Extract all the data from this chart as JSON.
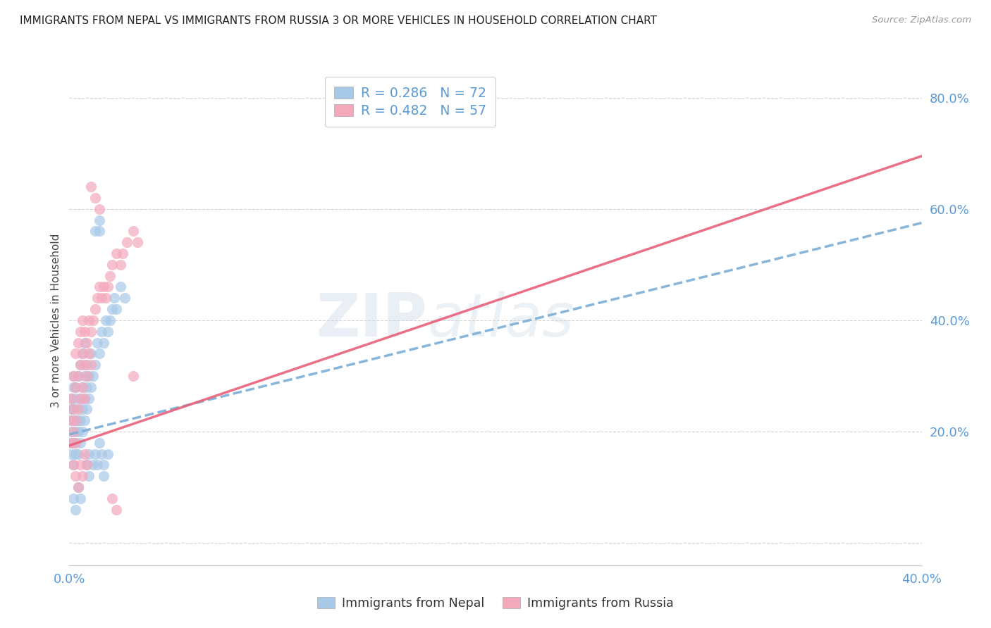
{
  "title": "IMMIGRANTS FROM NEPAL VS IMMIGRANTS FROM RUSSIA 3 OR MORE VEHICLES IN HOUSEHOLD CORRELATION CHART",
  "source": "Source: ZipAtlas.com",
  "ylabel": "3 or more Vehicles in Household",
  "y_ticks": [
    0.0,
    0.2,
    0.4,
    0.6,
    0.8
  ],
  "y_tick_labels": [
    "",
    "20.0%",
    "40.0%",
    "60.0%",
    "80.0%"
  ],
  "x_lim": [
    0.0,
    0.4
  ],
  "y_lim": [
    -0.04,
    0.84
  ],
  "nepal_R": 0.286,
  "nepal_N": 72,
  "russia_R": 0.482,
  "russia_N": 57,
  "nepal_color": "#a8c8e8",
  "russia_color": "#f4a8bc",
  "nepal_line_color": "#7aaed6",
  "russia_line_color": "#e8607a",
  "nepal_line_intercept": 0.195,
  "nepal_line_slope": 0.95,
  "russia_line_intercept": 0.175,
  "russia_line_slope": 1.3,
  "nepal_scatter": [
    [
      0.001,
      0.24
    ],
    [
      0.001,
      0.22
    ],
    [
      0.001,
      0.2
    ],
    [
      0.001,
      0.18
    ],
    [
      0.001,
      0.16
    ],
    [
      0.001,
      0.26
    ],
    [
      0.002,
      0.28
    ],
    [
      0.002,
      0.22
    ],
    [
      0.002,
      0.18
    ],
    [
      0.002,
      0.14
    ],
    [
      0.002,
      0.3
    ],
    [
      0.002,
      0.24
    ],
    [
      0.003,
      0.26
    ],
    [
      0.003,
      0.22
    ],
    [
      0.003,
      0.2
    ],
    [
      0.003,
      0.18
    ],
    [
      0.003,
      0.16
    ],
    [
      0.003,
      0.28
    ],
    [
      0.004,
      0.3
    ],
    [
      0.004,
      0.24
    ],
    [
      0.004,
      0.2
    ],
    [
      0.004,
      0.16
    ],
    [
      0.004,
      0.22
    ],
    [
      0.005,
      0.32
    ],
    [
      0.005,
      0.26
    ],
    [
      0.005,
      0.22
    ],
    [
      0.005,
      0.18
    ],
    [
      0.006,
      0.34
    ],
    [
      0.006,
      0.28
    ],
    [
      0.006,
      0.24
    ],
    [
      0.006,
      0.2
    ],
    [
      0.007,
      0.36
    ],
    [
      0.007,
      0.3
    ],
    [
      0.007,
      0.26
    ],
    [
      0.007,
      0.22
    ],
    [
      0.008,
      0.32
    ],
    [
      0.008,
      0.28
    ],
    [
      0.008,
      0.24
    ],
    [
      0.009,
      0.3
    ],
    [
      0.009,
      0.26
    ],
    [
      0.01,
      0.34
    ],
    [
      0.01,
      0.28
    ],
    [
      0.011,
      0.3
    ],
    [
      0.012,
      0.32
    ],
    [
      0.013,
      0.36
    ],
    [
      0.014,
      0.34
    ],
    [
      0.015,
      0.38
    ],
    [
      0.016,
      0.36
    ],
    [
      0.017,
      0.4
    ],
    [
      0.018,
      0.38
    ],
    [
      0.019,
      0.4
    ],
    [
      0.02,
      0.42
    ],
    [
      0.021,
      0.44
    ],
    [
      0.022,
      0.42
    ],
    [
      0.024,
      0.46
    ],
    [
      0.026,
      0.44
    ],
    [
      0.008,
      0.14
    ],
    [
      0.009,
      0.12
    ],
    [
      0.009,
      0.16
    ],
    [
      0.011,
      0.14
    ],
    [
      0.012,
      0.16
    ],
    [
      0.012,
      0.56
    ],
    [
      0.014,
      0.56
    ],
    [
      0.014,
      0.58
    ],
    [
      0.002,
      0.08
    ],
    [
      0.003,
      0.06
    ],
    [
      0.004,
      0.1
    ],
    [
      0.005,
      0.08
    ],
    [
      0.013,
      0.14
    ],
    [
      0.014,
      0.18
    ],
    [
      0.015,
      0.16
    ],
    [
      0.016,
      0.14
    ],
    [
      0.016,
      0.12
    ],
    [
      0.018,
      0.16
    ]
  ],
  "russia_scatter": [
    [
      0.001,
      0.26
    ],
    [
      0.001,
      0.22
    ],
    [
      0.001,
      0.18
    ],
    [
      0.002,
      0.3
    ],
    [
      0.002,
      0.24
    ],
    [
      0.002,
      0.2
    ],
    [
      0.003,
      0.34
    ],
    [
      0.003,
      0.28
    ],
    [
      0.003,
      0.22
    ],
    [
      0.003,
      0.18
    ],
    [
      0.004,
      0.36
    ],
    [
      0.004,
      0.3
    ],
    [
      0.004,
      0.24
    ],
    [
      0.005,
      0.38
    ],
    [
      0.005,
      0.32
    ],
    [
      0.005,
      0.26
    ],
    [
      0.006,
      0.4
    ],
    [
      0.006,
      0.34
    ],
    [
      0.006,
      0.28
    ],
    [
      0.007,
      0.38
    ],
    [
      0.007,
      0.32
    ],
    [
      0.007,
      0.26
    ],
    [
      0.008,
      0.36
    ],
    [
      0.008,
      0.3
    ],
    [
      0.009,
      0.4
    ],
    [
      0.009,
      0.34
    ],
    [
      0.01,
      0.38
    ],
    [
      0.01,
      0.32
    ],
    [
      0.011,
      0.4
    ],
    [
      0.012,
      0.42
    ],
    [
      0.013,
      0.44
    ],
    [
      0.014,
      0.46
    ],
    [
      0.015,
      0.44
    ],
    [
      0.016,
      0.46
    ],
    [
      0.017,
      0.44
    ],
    [
      0.018,
      0.46
    ],
    [
      0.019,
      0.48
    ],
    [
      0.02,
      0.5
    ],
    [
      0.022,
      0.52
    ],
    [
      0.024,
      0.5
    ],
    [
      0.025,
      0.52
    ],
    [
      0.027,
      0.54
    ],
    [
      0.03,
      0.56
    ],
    [
      0.032,
      0.54
    ],
    [
      0.002,
      0.14
    ],
    [
      0.003,
      0.12
    ],
    [
      0.004,
      0.1
    ],
    [
      0.005,
      0.14
    ],
    [
      0.006,
      0.12
    ],
    [
      0.007,
      0.16
    ],
    [
      0.008,
      0.14
    ],
    [
      0.01,
      0.64
    ],
    [
      0.012,
      0.62
    ],
    [
      0.014,
      0.6
    ],
    [
      0.02,
      0.08
    ],
    [
      0.022,
      0.06
    ],
    [
      0.03,
      0.3
    ]
  ],
  "watermark_zip": "ZIP",
  "watermark_atlas": "atlas",
  "background_color": "#ffffff",
  "grid_color": "#d0d0d0",
  "title_fontsize": 11,
  "tick_label_color": "#5b9bd5"
}
